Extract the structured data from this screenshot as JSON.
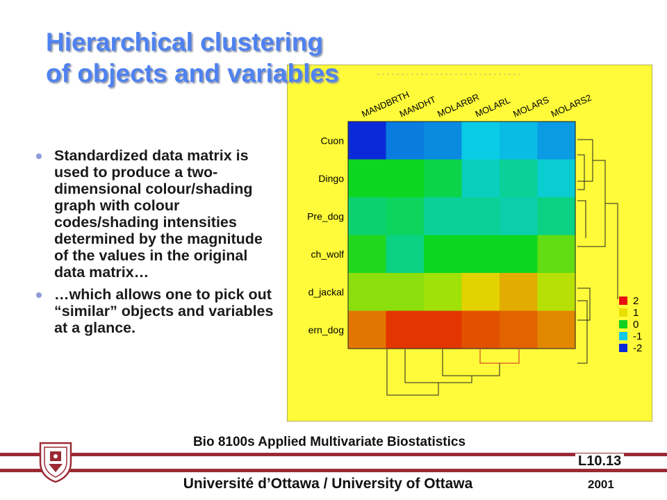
{
  "slide": {
    "title": "Hierarchical clustering of objects and variables",
    "bullets": [
      "Standardized data matrix is used to produce a two-dimensional colour/shading graph with colour codes/shading intensities determined by the magnitude of the values in the original data matrix…",
      "…which allows one to pick out “similar” objects and variables  at a glance."
    ]
  },
  "footer": {
    "course": "Bio 8100s Applied Multivariate Biostatistics",
    "lecture": "L10.13",
    "university": "Université d’Ottawa / University of Ottawa",
    "year": "2001"
  },
  "chart_data": {
    "type": "heatmap",
    "columns": [
      "MANDBRTH",
      "MANDHT",
      "MOLARBR",
      "MOLARL",
      "MOLARS",
      "MOLARS2"
    ],
    "rows": [
      "Cuon",
      "Dingo",
      "Pre_dog",
      "ch_wolf",
      "d_jackal",
      "ern_dog"
    ],
    "values": [
      [
        -2.0,
        -1.5,
        -1.4,
        -1.0,
        -1.1,
        -1.3
      ],
      [
        0.0,
        0.0,
        -0.2,
        -0.8,
        -0.6,
        -0.9
      ],
      [
        -0.4,
        -0.3,
        -0.6,
        -0.6,
        -0.7,
        -0.5
      ],
      [
        0.1,
        -0.5,
        0.0,
        0.0,
        0.0,
        0.4
      ],
      [
        0.6,
        0.6,
        0.7,
        1.1,
        1.3,
        0.8
      ],
      [
        1.6,
        1.95,
        1.95,
        1.8,
        1.7,
        1.5
      ]
    ],
    "legend": {
      "levels": [
        "2",
        "1",
        "0",
        "-1",
        "-2"
      ],
      "colors": [
        "#e81010",
        "#e8e000",
        "#10d020",
        "#10c8e8",
        "#0a2ad8"
      ]
    },
    "background_color": "#fffb3a"
  }
}
